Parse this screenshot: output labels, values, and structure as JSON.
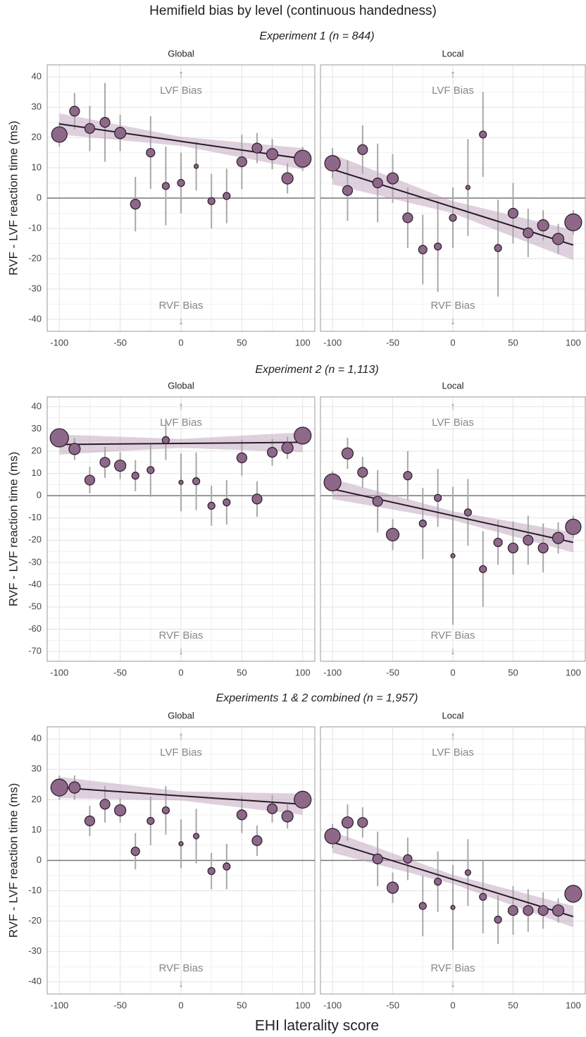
{
  "figure": {
    "title": "Hemifield bias by level (continuous handedness)",
    "xlabel": "EHI laterality score",
    "subtitles": [
      "Experiment 1 (n = 844)",
      "Experiment 2 (n = 1,113)",
      "Experiments 1 & 2 combined (n = 1,957)"
    ]
  },
  "chart_data": [
    {
      "type": "scatter",
      "title": "Global",
      "ylabel": "RVF - LVF reaction time (ms)",
      "ytick_labels": true,
      "x": [
        -100,
        -87.5,
        -75,
        -62.5,
        -50,
        -37.5,
        -25,
        -12.5,
        0,
        12.5,
        25,
        37.5,
        50,
        62.5,
        75,
        87.5,
        100
      ],
      "values": [
        21,
        28.7,
        23,
        25,
        21.5,
        -2,
        15,
        4,
        5,
        10.5,
        -1,
        0.7,
        12,
        16.5,
        14.5,
        6.5,
        13
      ],
      "errors": [
        4,
        6,
        7.5,
        13,
        6,
        9,
        12,
        13,
        10,
        8,
        9,
        9,
        9,
        5,
        5,
        5,
        4
      ],
      "sizes": [
        121,
        49,
        49,
        49,
        64,
        49,
        36,
        25,
        25,
        9,
        25,
        25,
        49,
        49,
        64,
        64,
        144
      ],
      "fit": {
        "x": [
          -100,
          0,
          100
        ],
        "values": [
          24.5,
          18.75,
          13
        ],
        "lower": [
          21,
          17.25,
          9.5
        ],
        "upper": [
          28,
          20.25,
          16.5
        ]
      },
      "annotations": [
        "↑",
        "LVF Bias",
        "RVF Bias",
        "↓"
      ],
      "hline": 0,
      "xlim": [
        -110,
        110
      ],
      "ylim": [
        -44,
        44
      ],
      "xticks": [
        -100,
        -50,
        0,
        50,
        100
      ],
      "yticks": [
        -40,
        -30,
        -20,
        -10,
        0,
        10,
        20,
        30,
        40
      ],
      "grid": true
    },
    {
      "type": "scatter",
      "title": "Local",
      "ytick_labels": false,
      "x": [
        -100,
        -87.5,
        -75,
        -62.5,
        -50,
        -37.5,
        -25,
        -12.5,
        0,
        12.5,
        25,
        37.5,
        50,
        62.5,
        75,
        87.5,
        100
      ],
      "values": [
        11.5,
        2.5,
        16,
        5,
        6.5,
        -6.5,
        -17,
        -16,
        -6.5,
        3.5,
        21,
        -16.5,
        -5,
        -11.5,
        -9,
        -13.5,
        -8
      ],
      "errors": [
        5,
        10,
        8,
        13,
        8,
        10,
        11.5,
        15,
        10,
        16,
        14,
        16,
        10,
        8,
        5,
        5,
        4
      ],
      "sizes": [
        121,
        49,
        49,
        49,
        64,
        49,
        36,
        25,
        25,
        9,
        25,
        25,
        49,
        49,
        64,
        64,
        144
      ],
      "fit": {
        "x": [
          -100,
          0,
          100
        ],
        "values": [
          9.5,
          -3,
          -15.5
        ],
        "lower": [
          4.5,
          -5,
          -20.5
        ],
        "upper": [
          14.5,
          -1,
          -10.5
        ]
      },
      "annotations": [
        "↑",
        "LVF Bias",
        "RVF Bias",
        "↓"
      ],
      "hline": 0,
      "xlim": [
        -110,
        110
      ],
      "ylim": [
        -44,
        44
      ],
      "xticks": [
        -100,
        -50,
        0,
        50,
        100
      ],
      "yticks": [
        -40,
        -30,
        -20,
        -10,
        0,
        10,
        20,
        30,
        40
      ],
      "grid": true
    },
    {
      "type": "scatter",
      "title": "Global",
      "ylabel": "RVF - LVF reaction time (ms)",
      "ytick_labels": true,
      "x": [
        -100,
        -87.5,
        -75,
        -62.5,
        -50,
        -37.5,
        -25,
        -12.5,
        0,
        12.5,
        25,
        37.5,
        50,
        62.5,
        75,
        87.5,
        100
      ],
      "values": [
        26,
        21,
        7,
        15,
        13.5,
        9,
        11.5,
        25,
        6,
        6.5,
        -4.5,
        -3,
        17,
        -1.5,
        19.5,
        21.5,
        27
      ],
      "errors": [
        4,
        5,
        6,
        7,
        6,
        7,
        12,
        9,
        13,
        13,
        9,
        10,
        8,
        8,
        6,
        5,
        4
      ],
      "sizes": [
        169,
        64,
        49,
        49,
        64,
        25,
        25,
        25,
        9,
        25,
        25,
        25,
        49,
        49,
        49,
        64,
        144
      ],
      "fit": {
        "x": [
          -100,
          0,
          100
        ],
        "values": [
          23,
          23.5,
          24
        ],
        "lower": [
          18.5,
          21.5,
          19.5
        ],
        "upper": [
          27.5,
          25.5,
          28.5
        ]
      },
      "annotations": [
        "↑",
        "LVF Bias",
        "RVF Bias",
        "↓"
      ],
      "hline": 0,
      "xlim": [
        -110,
        110
      ],
      "ylim": [
        -74.4,
        44.4
      ],
      "xticks": [
        -100,
        -50,
        0,
        50,
        100
      ],
      "yticks": [
        -70,
        -60,
        -50,
        -40,
        -30,
        -20,
        -10,
        0,
        10,
        20,
        30,
        40
      ],
      "grid": true
    },
    {
      "type": "scatter",
      "title": "Local",
      "ytick_labels": false,
      "x": [
        -100,
        -87.5,
        -75,
        -62.5,
        -50,
        -37.5,
        -25,
        -12.5,
        0,
        12.5,
        25,
        37.5,
        50,
        62.5,
        75,
        87.5,
        100
      ],
      "values": [
        6,
        19,
        10.5,
        -2.5,
        -17.5,
        9,
        -12.5,
        -1,
        -27,
        -7.5,
        -33,
        -21,
        -23.5,
        -20,
        -23.5,
        -19,
        -14
      ],
      "errors": [
        5,
        7,
        7,
        14,
        7,
        11,
        16,
        13,
        31,
        15,
        17,
        10,
        12,
        11,
        11,
        7,
        5
      ],
      "sizes": [
        144,
        64,
        49,
        49,
        81,
        36,
        25,
        25,
        9,
        25,
        25,
        36,
        49,
        49,
        49,
        64,
        121
      ],
      "fit": {
        "x": [
          -100,
          0,
          100
        ],
        "values": [
          3,
          -9,
          -21
        ],
        "lower": [
          -1.5,
          -11,
          -25.5
        ],
        "upper": [
          7.5,
          -7,
          -16.5
        ]
      },
      "annotations": [
        "↑",
        "LVF Bias",
        "RVF Bias",
        "↓"
      ],
      "hline": 0,
      "xlim": [
        -110,
        110
      ],
      "ylim": [
        -74.4,
        44.4
      ],
      "xticks": [
        -100,
        -50,
        0,
        50,
        100
      ],
      "yticks": [
        -70,
        -60,
        -50,
        -40,
        -30,
        -20,
        -10,
        0,
        10,
        20,
        30,
        40
      ],
      "grid": true
    },
    {
      "type": "scatter",
      "title": "Global",
      "ylabel": "RVF - LVF reaction time (ms)",
      "ytick_labels": true,
      "x": [
        -100,
        -87.5,
        -75,
        -62.5,
        -50,
        -37.5,
        -25,
        -12.5,
        0,
        12.5,
        25,
        37.5,
        50,
        62.5,
        75,
        87.5,
        100
      ],
      "values": [
        24,
        24,
        13,
        18.5,
        16.5,
        3,
        13,
        16.5,
        5.5,
        8,
        -3.5,
        -2,
        15,
        6.5,
        17,
        14.5,
        20
      ],
      "errors": [
        4,
        4,
        5,
        6,
        4,
        6,
        8,
        8,
        8,
        9,
        6,
        7.5,
        6,
        5,
        4.5,
        4,
        3
      ],
      "sizes": [
        144,
        64,
        49,
        49,
        64,
        36,
        25,
        25,
        9,
        16,
        25,
        25,
        49,
        49,
        49,
        64,
        144
      ],
      "fit": {
        "x": [
          -100,
          0,
          100
        ],
        "values": [
          24,
          21.25,
          18.5
        ],
        "lower": [
          20.5,
          19.75,
          15
        ],
        "upper": [
          27.5,
          22.75,
          22
        ]
      },
      "annotations": [
        "↑",
        "LVF Bias",
        "RVF Bias",
        "↓"
      ],
      "hline": 0,
      "xlim": [
        -110,
        110
      ],
      "ylim": [
        -44,
        44
      ],
      "xticks": [
        -100,
        -50,
        0,
        50,
        100
      ],
      "yticks": [
        -40,
        -30,
        -20,
        -10,
        0,
        10,
        20,
        30,
        40
      ],
      "grid": true
    },
    {
      "type": "scatter",
      "title": "Local",
      "ytick_labels": false,
      "x": [
        -100,
        -87.5,
        -75,
        -62.5,
        -50,
        -37.5,
        -25,
        -12.5,
        0,
        12.5,
        25,
        37.5,
        50,
        62.5,
        75,
        87.5,
        100
      ],
      "values": [
        8,
        12.5,
        12.5,
        0.5,
        -9,
        0.5,
        -15,
        -7,
        -15.5,
        -4,
        -12,
        -19.5,
        -16.5,
        -16.5,
        -16.5,
        -16.5,
        -11
      ],
      "errors": [
        4,
        6,
        5,
        9,
        5,
        7,
        10,
        10,
        14,
        11,
        12,
        8,
        8,
        7,
        6,
        4,
        3
      ],
      "sizes": [
        121,
        64,
        49,
        49,
        64,
        36,
        25,
        25,
        9,
        16,
        25,
        25,
        49,
        49,
        49,
        64,
        144
      ],
      "fit": {
        "x": [
          -100,
          0,
          100
        ],
        "values": [
          6,
          -6.25,
          -18.5
        ],
        "lower": [
          2.5,
          -7.75,
          -22
        ],
        "upper": [
          9.5,
          -4.75,
          -15
        ]
      },
      "annotations": [
        "↑",
        "LVF Bias",
        "RVF Bias",
        "↓"
      ],
      "hline": 0,
      "xlim": [
        -110,
        110
      ],
      "ylim": [
        -44,
        44
      ],
      "xticks": [
        -100,
        -50,
        0,
        50,
        100
      ],
      "yticks": [
        -40,
        -30,
        -20,
        -10,
        0,
        10,
        20,
        30,
        40
      ],
      "grid": true
    }
  ]
}
